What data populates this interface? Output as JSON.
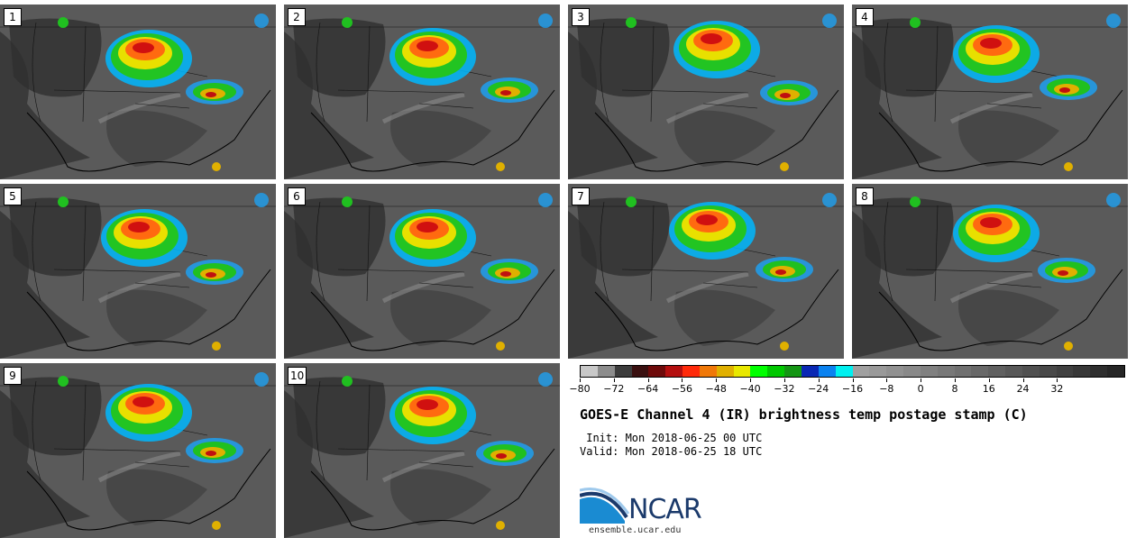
{
  "panels": [
    {
      "label": "1"
    },
    {
      "label": "2"
    },
    {
      "label": "3"
    },
    {
      "label": "4"
    },
    {
      "label": "5"
    },
    {
      "label": "6"
    },
    {
      "label": "7"
    },
    {
      "label": "8"
    },
    {
      "label": "9"
    },
    {
      "label": "10"
    }
  ],
  "colorbar": {
    "colors": [
      "#c8c8c8",
      "#8c8c8c",
      "#3c3c3c",
      "#3a1010",
      "#6e0a0a",
      "#b40f0f",
      "#ff2a0a",
      "#f07808",
      "#e0b000",
      "#e8e800",
      "#00ff00",
      "#00c800",
      "#149614",
      "#0a28b4",
      "#0a82f0",
      "#00f0f0",
      "#a0a0a0",
      "#999999",
      "#919191",
      "#898989",
      "#808080",
      "#787878",
      "#707070",
      "#686868",
      "#606060",
      "#585858",
      "#505050",
      "#484848",
      "#404040",
      "#383838",
      "#2e2e2e",
      "#262626"
    ],
    "tick_labels": [
      "−80",
      "−72",
      "−64",
      "−56",
      "−48",
      "−40",
      "−32",
      "−24",
      "−16",
      "−8",
      "0",
      "8",
      "16",
      "24",
      "32"
    ]
  },
  "title": "GOES-E Channel 4 (IR) brightness temp postage stamp (C)",
  "init": " Init: Mon 2018-06-25 00 UTC",
  "valid": "Valid: Mon 2018-06-25 18 UTC",
  "logo_text": "NCAR",
  "url": "ensemble.ucar.edu"
}
